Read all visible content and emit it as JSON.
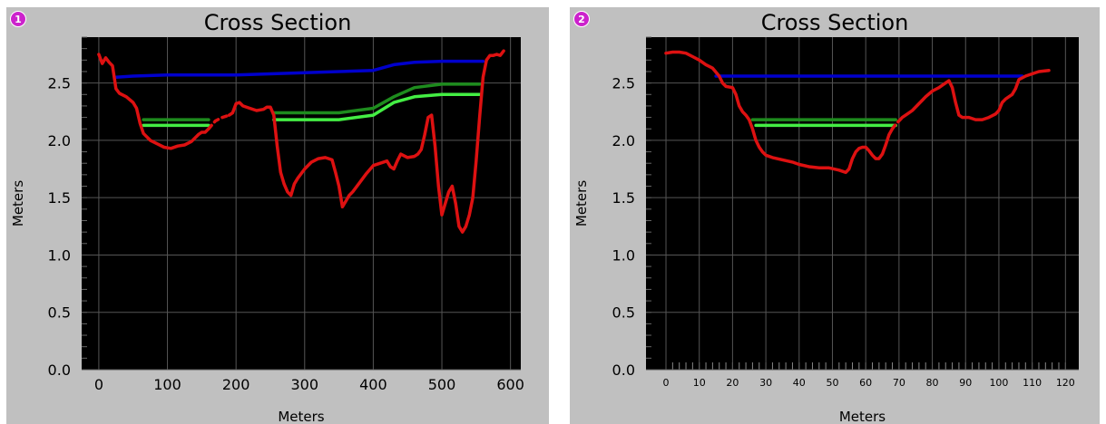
{
  "chart_data": [
    {
      "type": "line",
      "badge": "1",
      "title": "Cross Section",
      "xlabel": "Meters",
      "ylabel": "Meters",
      "xlim": [
        -25,
        615
      ],
      "ylim": [
        0,
        2.9
      ],
      "xticks": [
        0,
        100,
        200,
        300,
        400,
        500,
        600
      ],
      "yticks": [
        0.0,
        0.5,
        1.0,
        1.5,
        2.0,
        2.5
      ],
      "ytick_labels": [
        "0.0",
        "0.5",
        "1.0",
        "1.5",
        "2.0",
        "2.5"
      ],
      "grid": true,
      "series": [
        {
          "color": "#0000cc",
          "style": "solid",
          "points": [
            [
              25,
              2.55
            ],
            [
              50,
              2.56
            ],
            [
              100,
              2.57
            ],
            [
              200,
              2.57
            ],
            [
              250,
              2.58
            ],
            [
              300,
              2.59
            ],
            [
              350,
              2.6
            ],
            [
              400,
              2.61
            ],
            [
              430,
              2.66
            ],
            [
              460,
              2.68
            ],
            [
              500,
              2.69
            ],
            [
              560,
              2.69
            ]
          ]
        },
        {
          "color": "#1e8c1e",
          "style": "solid",
          "points": [
            [
              65,
              2.18
            ],
            [
              160,
              2.18
            ]
          ]
        },
        {
          "color": "#1e8c1e",
          "style": "solid",
          "points": [
            [
              255,
              2.24
            ],
            [
              350,
              2.24
            ],
            [
              400,
              2.28
            ],
            [
              430,
              2.38
            ],
            [
              460,
              2.46
            ],
            [
              500,
              2.49
            ],
            [
              555,
              2.49
            ]
          ]
        },
        {
          "color": "#44ee44",
          "style": "solid",
          "points": [
            [
              65,
              2.13
            ],
            [
              160,
              2.13
            ]
          ]
        },
        {
          "color": "#44ee44",
          "style": "solid",
          "points": [
            [
              255,
              2.18
            ],
            [
              350,
              2.18
            ],
            [
              400,
              2.22
            ],
            [
              430,
              2.33
            ],
            [
              460,
              2.38
            ],
            [
              500,
              2.4
            ],
            [
              555,
              2.4
            ]
          ]
        },
        {
          "color": "#dd1111",
          "style": "solid",
          "points": [
            [
              0,
              2.75
            ],
            [
              5,
              2.67
            ],
            [
              10,
              2.72
            ],
            [
              15,
              2.68
            ],
            [
              20,
              2.65
            ],
            [
              25,
              2.45
            ],
            [
              30,
              2.41
            ],
            [
              40,
              2.38
            ],
            [
              50,
              2.33
            ],
            [
              55,
              2.28
            ],
            [
              60,
              2.15
            ],
            [
              65,
              2.06
            ],
            [
              75,
              2.0
            ],
            [
              85,
              1.97
            ],
            [
              95,
              1.94
            ],
            [
              105,
              1.93
            ],
            [
              115,
              1.95
            ],
            [
              125,
              1.96
            ],
            [
              135,
              1.99
            ],
            [
              145,
              2.05
            ],
            [
              150,
              2.07
            ],
            [
              155,
              2.07
            ],
            [
              160,
              2.1
            ]
          ]
        },
        {
          "color": "#dd1111",
          "style": "dashed",
          "points": [
            [
              160,
              2.1
            ],
            [
              170,
              2.17
            ],
            [
              180,
              2.2
            ],
            [
              190,
              2.22
            ]
          ]
        },
        {
          "color": "#dd1111",
          "style": "solid",
          "points": [
            [
              190,
              2.22
            ],
            [
              195,
              2.24
            ],
            [
              200,
              2.32
            ],
            [
              205,
              2.33
            ],
            [
              210,
              2.3
            ],
            [
              220,
              2.28
            ],
            [
              230,
              2.26
            ],
            [
              240,
              2.27
            ],
            [
              245,
              2.29
            ],
            [
              250,
              2.29
            ],
            [
              255,
              2.22
            ],
            [
              260,
              1.95
            ],
            [
              265,
              1.72
            ],
            [
              270,
              1.62
            ],
            [
              275,
              1.55
            ],
            [
              280,
              1.52
            ],
            [
              285,
              1.62
            ],
            [
              290,
              1.67
            ],
            [
              300,
              1.75
            ],
            [
              310,
              1.81
            ],
            [
              320,
              1.84
            ],
            [
              330,
              1.85
            ],
            [
              340,
              1.83
            ],
            [
              345,
              1.72
            ],
            [
              350,
              1.6
            ],
            [
              355,
              1.42
            ],
            [
              360,
              1.47
            ],
            [
              365,
              1.52
            ],
            [
              370,
              1.55
            ],
            [
              380,
              1.63
            ],
            [
              390,
              1.71
            ],
            [
              400,
              1.78
            ],
            [
              410,
              1.8
            ],
            [
              420,
              1.82
            ],
            [
              425,
              1.77
            ],
            [
              430,
              1.75
            ],
            [
              435,
              1.82
            ],
            [
              440,
              1.88
            ],
            [
              450,
              1.85
            ],
            [
              460,
              1.86
            ],
            [
              465,
              1.88
            ],
            [
              470,
              1.92
            ],
            [
              475,
              2.05
            ],
            [
              480,
              2.2
            ],
            [
              485,
              2.22
            ],
            [
              490,
              1.95
            ],
            [
              495,
              1.6
            ],
            [
              500,
              1.35
            ],
            [
              505,
              1.45
            ],
            [
              510,
              1.55
            ],
            [
              515,
              1.6
            ],
            [
              520,
              1.45
            ],
            [
              525,
              1.25
            ],
            [
              530,
              1.2
            ],
            [
              535,
              1.25
            ],
            [
              540,
              1.35
            ],
            [
              545,
              1.5
            ],
            [
              550,
              1.82
            ],
            [
              555,
              2.2
            ],
            [
              560,
              2.55
            ],
            [
              565,
              2.7
            ],
            [
              570,
              2.74
            ],
            [
              575,
              2.74
            ],
            [
              580,
              2.75
            ],
            [
              585,
              2.74
            ],
            [
              590,
              2.78
            ]
          ]
        }
      ]
    },
    {
      "type": "line",
      "badge": "2",
      "title": "Cross Section",
      "xlabel": "Meters",
      "ylabel": "Meters",
      "xlim": [
        -6,
        124
      ],
      "ylim": [
        0,
        2.9
      ],
      "xticks": [
        0,
        10,
        20,
        30,
        40,
        50,
        60,
        70,
        80,
        90,
        100,
        110,
        120
      ],
      "yticks": [
        0.0,
        0.5,
        1.0,
        1.5,
        2.0,
        2.5
      ],
      "ytick_labels": [
        "0.0",
        "0.5",
        "1.0",
        "1.5",
        "2.0",
        "2.5"
      ],
      "grid": true,
      "series": [
        {
          "color": "#0000cc",
          "style": "solid",
          "points": [
            [
              15,
              2.56
            ],
            [
              107,
              2.56
            ]
          ]
        },
        {
          "color": "#1e8c1e",
          "style": "solid",
          "points": [
            [
              26,
              2.18
            ],
            [
              69,
              2.18
            ]
          ]
        },
        {
          "color": "#44ee44",
          "style": "solid",
          "points": [
            [
              27,
              2.13
            ],
            [
              69,
              2.13
            ]
          ]
        },
        {
          "color": "#dd1111",
          "style": "solid",
          "points": [
            [
              0,
              2.76
            ],
            [
              2,
              2.77
            ],
            [
              4,
              2.77
            ],
            [
              6,
              2.76
            ],
            [
              8,
              2.73
            ],
            [
              10,
              2.7
            ],
            [
              12,
              2.66
            ],
            [
              14,
              2.63
            ],
            [
              16,
              2.56
            ],
            [
              17,
              2.5
            ],
            [
              18,
              2.47
            ],
            [
              20,
              2.46
            ],
            [
              21,
              2.4
            ],
            [
              22,
              2.3
            ],
            [
              23,
              2.25
            ],
            [
              24,
              2.22
            ],
            [
              25,
              2.18
            ],
            [
              26,
              2.1
            ],
            [
              27,
              2.0
            ],
            [
              28,
              1.94
            ],
            [
              29,
              1.9
            ],
            [
              30,
              1.87
            ],
            [
              32,
              1.85
            ],
            [
              35,
              1.83
            ],
            [
              38,
              1.81
            ],
            [
              40,
              1.79
            ],
            [
              43,
              1.77
            ],
            [
              46,
              1.76
            ],
            [
              49,
              1.76
            ],
            [
              52,
              1.74
            ],
            [
              54,
              1.72
            ],
            [
              55,
              1.75
            ],
            [
              56,
              1.84
            ],
            [
              57,
              1.9
            ],
            [
              58,
              1.93
            ],
            [
              59,
              1.94
            ],
            [
              60,
              1.94
            ],
            [
              61,
              1.91
            ],
            [
              62,
              1.87
            ],
            [
              63,
              1.84
            ],
            [
              64,
              1.84
            ],
            [
              65,
              1.88
            ],
            [
              66,
              1.96
            ],
            [
              67,
              2.05
            ],
            [
              68,
              2.1
            ]
          ]
        },
        {
          "color": "#dd1111",
          "style": "dashed",
          "points": [
            [
              68,
              2.1
            ],
            [
              69,
              2.14
            ],
            [
              70,
              2.17
            ],
            [
              71,
              2.2
            ]
          ]
        },
        {
          "color": "#dd1111",
          "style": "solid",
          "points": [
            [
              71,
              2.2
            ],
            [
              72,
              2.22
            ],
            [
              74,
              2.26
            ],
            [
              76,
              2.32
            ],
            [
              78,
              2.38
            ],
            [
              80,
              2.43
            ],
            [
              82,
              2.46
            ],
            [
              84,
              2.5
            ],
            [
              85,
              2.52
            ],
            [
              86,
              2.46
            ],
            [
              87,
              2.33
            ],
            [
              88,
              2.22
            ],
            [
              89,
              2.2
            ],
            [
              91,
              2.2
            ],
            [
              93,
              2.18
            ],
            [
              95,
              2.18
            ],
            [
              97,
              2.2
            ],
            [
              99,
              2.23
            ],
            [
              100,
              2.26
            ],
            [
              101,
              2.33
            ],
            [
              102,
              2.36
            ],
            [
              103,
              2.38
            ],
            [
              104,
              2.4
            ],
            [
              105,
              2.45
            ],
            [
              106,
              2.53
            ],
            [
              108,
              2.56
            ],
            [
              110,
              2.58
            ],
            [
              112,
              2.6
            ],
            [
              115,
              2.61
            ]
          ]
        }
      ]
    }
  ]
}
